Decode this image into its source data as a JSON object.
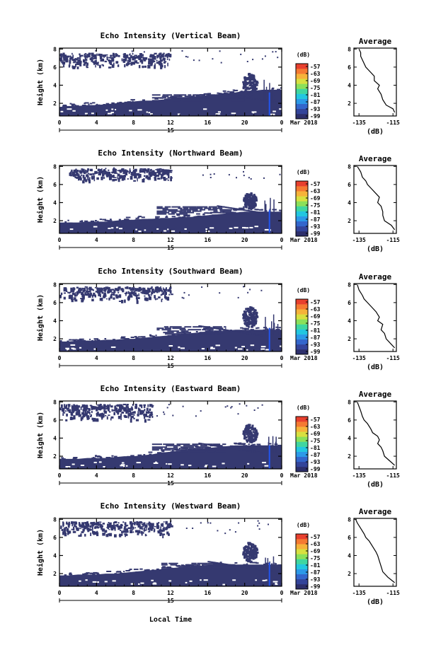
{
  "figure": {
    "xlabel": "Local Time",
    "date_day": "15",
    "date_label": "Mar 2018",
    "colorbar_unit": "(dB)",
    "colorbar_ticks": [
      "-57",
      "-63",
      "-69",
      "-75",
      "-81",
      "-87",
      "-93",
      "-99"
    ],
    "colors": {
      "echo": "#353970",
      "streak": "#2255ee",
      "streak_light": "#44aaff"
    },
    "colorbar_colors": [
      "#2d2f6b",
      "#33449a",
      "#3366cc",
      "#2c99e8",
      "#22c7e0",
      "#3fd6a0",
      "#8be05a",
      "#d8e040",
      "#f6b33a",
      "#f57a32",
      "#e8402e"
    ]
  },
  "chart_data": [
    {
      "type": "heatmap",
      "title": "Echo Intensity (Vertical Beam)",
      "ylabel": "Height (km)",
      "x_ticks": [
        "0",
        "4",
        "8",
        "12",
        "16",
        "20",
        "0"
      ],
      "xlim": [
        0,
        24
      ],
      "y_ticks": [
        "2",
        "4",
        "6",
        "8"
      ],
      "ylim": [
        0.6,
        8.1
      ],
      "layers": [
        {
          "name": "boundary",
          "x_start": 0,
          "x_end": 24,
          "height_top": [
            1.6,
            1.7,
            1.7,
            1.8,
            1.8,
            1.9,
            2.0,
            2.1,
            2.2,
            2.3,
            2.3,
            2.4,
            2.5,
            2.6,
            2.7,
            2.8,
            2.9,
            3.0,
            3.1,
            3.2,
            3.4,
            3.4,
            3.5,
            3.5,
            3.5
          ]
        },
        {
          "name": "mid-layer",
          "x_start": 10,
          "x_end": 20,
          "height_bottom": 2.3,
          "height_top": 3.0
        },
        {
          "name": "upper-cloud",
          "x_start": 0,
          "x_end": 12,
          "height_bottom": 6.0,
          "height_top": 7.6
        },
        {
          "name": "convective",
          "x_center": 20.5,
          "x_width": 1.6,
          "height_bottom": 3.0,
          "height_top": 5.4
        }
      ],
      "average_profile": {
        "title": "Average",
        "xlabel": "(dB)",
        "x_ticks": [
          "-135",
          "-115"
        ],
        "xlim": [
          -138,
          -113
        ],
        "y_ticks": [
          "2",
          "4",
          "6",
          "8"
        ],
        "ylim": [
          0.6,
          8.1
        ],
        "points": [
          [
            -114,
            1.0
          ],
          [
            -115,
            1.4
          ],
          [
            -119,
            1.8
          ],
          [
            -121,
            2.4
          ],
          [
            -122,
            3.0
          ],
          [
            -124,
            3.6
          ],
          [
            -123,
            4.0
          ],
          [
            -126,
            4.5
          ],
          [
            -126,
            5.0
          ],
          [
            -129,
            5.6
          ],
          [
            -131,
            6.0
          ],
          [
            -132,
            6.4
          ],
          [
            -133,
            6.8
          ],
          [
            -134,
            7.2
          ],
          [
            -134,
            7.6
          ],
          [
            -135,
            8.0
          ]
        ]
      }
    },
    {
      "type": "heatmap",
      "title": "Echo Intensity (Northward Beam)",
      "ylabel": "Height (km)",
      "x_ticks": [
        "0",
        "4",
        "8",
        "12",
        "16",
        "20",
        "0"
      ],
      "xlim": [
        0,
        24
      ],
      "y_ticks": [
        "2",
        "4",
        "6",
        "8"
      ],
      "ylim": [
        0.6,
        8.1
      ],
      "layers": [
        {
          "name": "boundary",
          "x_start": 0,
          "x_end": 24,
          "height_top": [
            1.8,
            1.8,
            1.8,
            1.9,
            1.9,
            1.9,
            2.0,
            2.1,
            2.1,
            2.2,
            2.2,
            2.3,
            2.3,
            2.4,
            2.4,
            2.5,
            2.6,
            2.7,
            2.8,
            2.9,
            3.0,
            3.0,
            3.0,
            3.0,
            3.0
          ]
        },
        {
          "name": "mid-layer",
          "x_start": 10.5,
          "x_end": 20,
          "height_bottom": 2.8,
          "height_top": 3.6
        },
        {
          "name": "upper-cloud",
          "x_start": 1,
          "x_end": 12,
          "height_bottom": 6.4,
          "height_top": 7.8
        },
        {
          "name": "convective",
          "x_center": 20.5,
          "x_width": 1.4,
          "height_bottom": 3.4,
          "height_top": 5.2
        }
      ],
      "average_profile": {
        "title": "Average",
        "xlabel": "(dB)",
        "x_ticks": [
          "-135",
          "-115"
        ],
        "xlim": [
          -138,
          -113
        ],
        "y_ticks": [
          "2",
          "4",
          "6",
          "8"
        ],
        "ylim": [
          0.6,
          8.1
        ],
        "points": [
          [
            -114,
            1.0
          ],
          [
            -116,
            1.5
          ],
          [
            -120,
            2.0
          ],
          [
            -121,
            2.6
          ],
          [
            -121,
            3.0
          ],
          [
            -122,
            3.6
          ],
          [
            -124,
            4.0
          ],
          [
            -123,
            4.6
          ],
          [
            -125,
            5.0
          ],
          [
            -128,
            5.6
          ],
          [
            -130,
            6.0
          ],
          [
            -131,
            6.4
          ],
          [
            -133,
            6.8
          ],
          [
            -134,
            7.4
          ],
          [
            -136,
            8.0
          ]
        ]
      }
    },
    {
      "type": "heatmap",
      "title": "Echo Intensity (Southward Beam)",
      "ylabel": "Height (km)",
      "x_ticks": [
        "0",
        "4",
        "8",
        "12",
        "16",
        "20",
        "0"
      ],
      "xlim": [
        0,
        24
      ],
      "y_ticks": [
        "2",
        "4",
        "6",
        "8"
      ],
      "ylim": [
        0.6,
        8.1
      ],
      "layers": [
        {
          "name": "boundary",
          "x_start": 0,
          "x_end": 24,
          "height_top": [
            1.7,
            1.7,
            1.8,
            1.8,
            1.8,
            1.9,
            1.9,
            2.0,
            2.0,
            2.1,
            2.2,
            2.3,
            2.4,
            2.5,
            2.6,
            2.7,
            2.8,
            2.8,
            2.9,
            3.0,
            3.0,
            3.0,
            3.0,
            3.0,
            3.0
          ]
        },
        {
          "name": "mid-layer",
          "x_start": 10.5,
          "x_end": 18,
          "height_bottom": 2.6,
          "height_top": 3.4
        },
        {
          "name": "upper-cloud",
          "x_start": 0,
          "x_end": 12,
          "height_bottom": 6.2,
          "height_top": 7.8
        },
        {
          "name": "convective",
          "x_center": 20.5,
          "x_width": 1.6,
          "height_bottom": 3.4,
          "height_top": 5.6
        }
      ],
      "average_profile": {
        "title": "Average",
        "xlabel": "(dB)",
        "x_ticks": [
          "-135",
          "-115"
        ],
        "xlim": [
          -138,
          -113
        ],
        "y_ticks": [
          "2",
          "4",
          "6",
          "8"
        ],
        "ylim": [
          0.6,
          8.1
        ],
        "points": [
          [
            -114,
            1.0
          ],
          [
            -116,
            1.4
          ],
          [
            -119,
            2.0
          ],
          [
            -120,
            2.6
          ],
          [
            -122,
            3.0
          ],
          [
            -121,
            3.6
          ],
          [
            -124,
            4.0
          ],
          [
            -123,
            4.4
          ],
          [
            -125,
            5.0
          ],
          [
            -128,
            5.6
          ],
          [
            -130,
            6.0
          ],
          [
            -132,
            6.4
          ],
          [
            -133,
            6.8
          ],
          [
            -135,
            7.4
          ],
          [
            -136,
            8.0
          ]
        ]
      }
    },
    {
      "type": "heatmap",
      "title": "Echo Intensity (Eastward Beam)",
      "ylabel": "Height (km)",
      "x_ticks": [
        "0",
        "4",
        "8",
        "12",
        "16",
        "20",
        "0"
      ],
      "xlim": [
        0,
        24
      ],
      "y_ticks": [
        "2",
        "4",
        "6",
        "8"
      ],
      "ylim": [
        0.6,
        8.1
      ],
      "layers": [
        {
          "name": "boundary",
          "x_start": 0,
          "x_end": 24,
          "height_top": [
            1.7,
            1.7,
            1.7,
            1.8,
            1.8,
            1.8,
            1.9,
            2.0,
            2.0,
            2.1,
            2.2,
            2.4,
            2.5,
            2.6,
            2.7,
            2.8,
            2.9,
            3.0,
            3.1,
            3.2,
            3.2,
            3.2,
            3.2,
            3.2,
            3.2
          ]
        },
        {
          "name": "mid-layer",
          "x_start": 10,
          "x_end": 18,
          "height_bottom": 2.6,
          "height_top": 3.4
        },
        {
          "name": "upper-cloud",
          "x_start": 0,
          "x_end": 10,
          "height_bottom": 6.0,
          "height_top": 7.8
        },
        {
          "name": "convective",
          "x_center": 20.5,
          "x_width": 1.6,
          "height_bottom": 3.6,
          "height_top": 5.6
        }
      ],
      "average_profile": {
        "title": "Average",
        "xlabel": "(dB)",
        "x_ticks": [
          "-135",
          "-115"
        ],
        "xlim": [
          -138,
          -113
        ],
        "y_ticks": [
          "2",
          "4",
          "6",
          "8"
        ],
        "ylim": [
          0.6,
          8.1
        ],
        "points": [
          [
            -114,
            1.0
          ],
          [
            -117,
            1.5
          ],
          [
            -120,
            2.0
          ],
          [
            -121,
            2.6
          ],
          [
            -122,
            3.0
          ],
          [
            -124,
            3.4
          ],
          [
            -123,
            3.8
          ],
          [
            -124,
            4.2
          ],
          [
            -127,
            4.6
          ],
          [
            -128,
            5.0
          ],
          [
            -130,
            5.6
          ],
          [
            -132,
            6.0
          ],
          [
            -133,
            6.4
          ],
          [
            -134,
            7.0
          ],
          [
            -136,
            8.0
          ]
        ]
      }
    },
    {
      "type": "heatmap",
      "title": "Echo Intensity (Westward Beam)",
      "ylabel": "Height (km)",
      "x_ticks": [
        "0",
        "4",
        "8",
        "12",
        "16",
        "20",
        "0"
      ],
      "xlim": [
        0,
        24
      ],
      "y_ticks": [
        "2",
        "4",
        "6",
        "8"
      ],
      "ylim": [
        0.6,
        8.1
      ],
      "layers": [
        {
          "name": "boundary",
          "x_start": 0,
          "x_end": 24,
          "height_top": [
            1.8,
            1.8,
            1.9,
            1.9,
            1.9,
            2.0,
            2.0,
            2.1,
            2.2,
            2.3,
            2.4,
            2.5,
            2.6,
            2.7,
            2.8,
            2.8,
            2.9,
            3.0,
            3.0,
            3.0,
            3.0,
            3.0,
            3.0,
            3.0,
            3.0
          ]
        },
        {
          "name": "mid-layer",
          "x_start": 11,
          "x_end": 19,
          "height_bottom": 2.5,
          "height_top": 3.2
        },
        {
          "name": "upper-cloud",
          "x_start": 0,
          "x_end": 12,
          "height_bottom": 6.2,
          "height_top": 7.8
        },
        {
          "name": "convective",
          "x_center": 20.5,
          "x_width": 1.6,
          "height_bottom": 3.4,
          "height_top": 5.6
        }
      ],
      "average_profile": {
        "title": "Average",
        "xlabel": "(dB)",
        "x_ticks": [
          "-135",
          "-115"
        ],
        "xlim": [
          -138,
          -113
        ],
        "y_ticks": [
          "2",
          "4",
          "6",
          "8"
        ],
        "ylim": [
          0.6,
          8.1
        ],
        "points": [
          [
            -114,
            1.0
          ],
          [
            -118,
            1.6
          ],
          [
            -121,
            2.2
          ],
          [
            -122,
            2.8
          ],
          [
            -123,
            3.4
          ],
          [
            -124,
            4.0
          ],
          [
            -125,
            4.4
          ],
          [
            -127,
            5.0
          ],
          [
            -129,
            5.6
          ],
          [
            -131,
            6.0
          ],
          [
            -132,
            6.4
          ],
          [
            -134,
            7.0
          ],
          [
            -136,
            7.6
          ],
          [
            -137,
            8.0
          ]
        ]
      }
    }
  ]
}
